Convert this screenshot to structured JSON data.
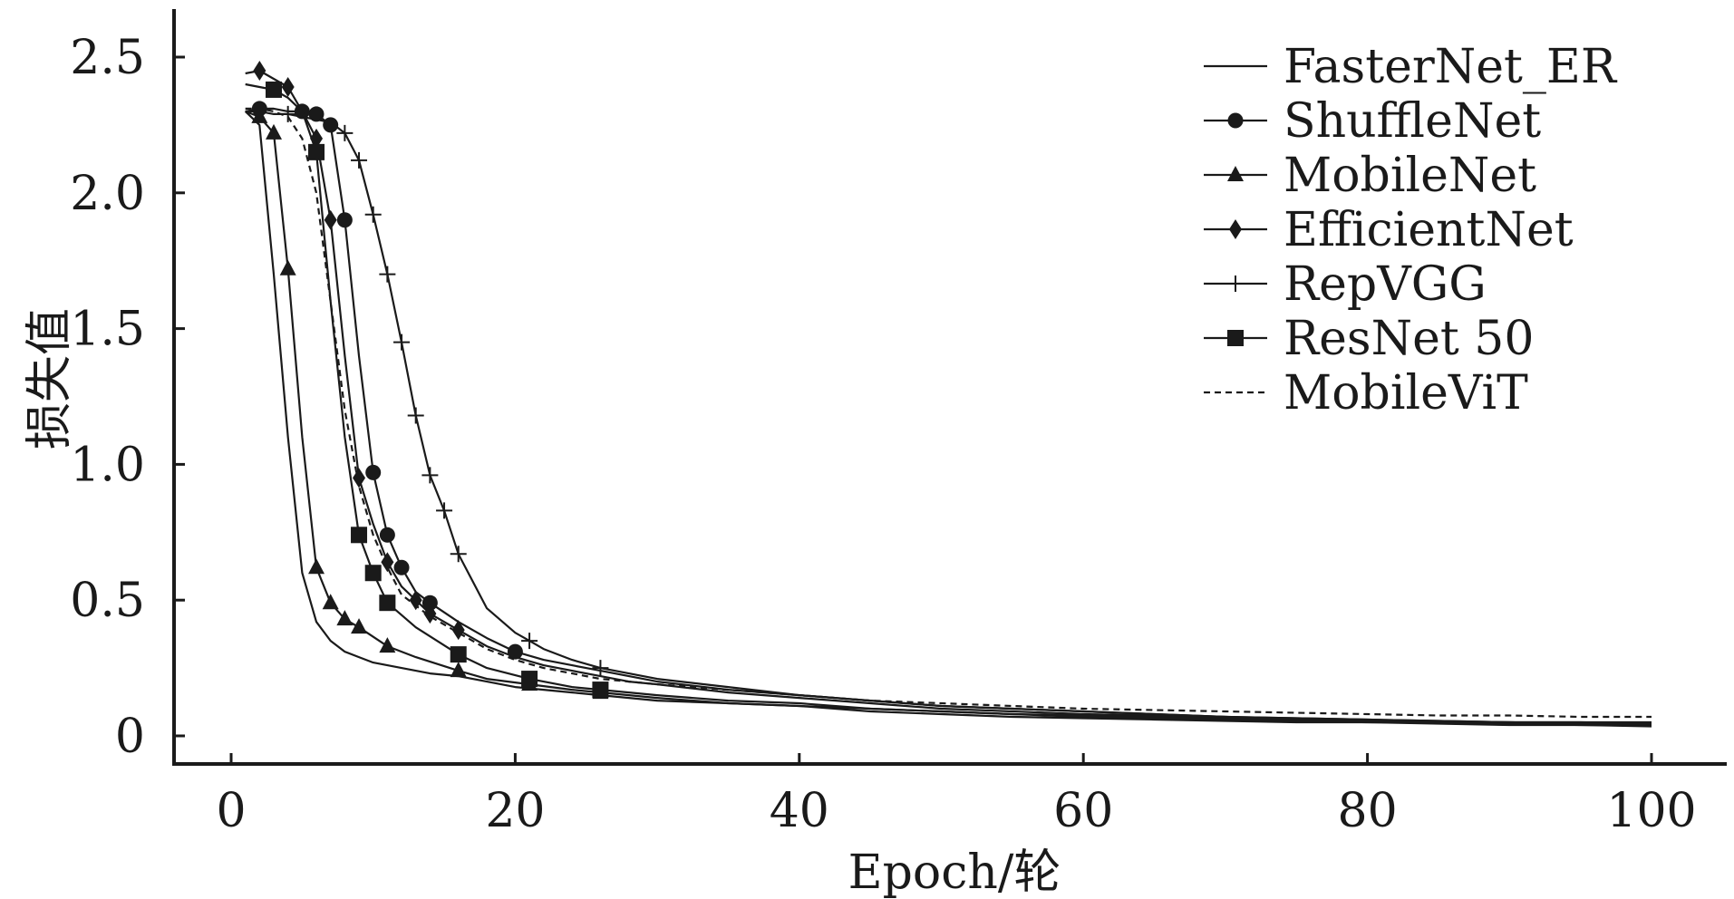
{
  "chart_data": {
    "type": "line",
    "title": "",
    "xlabel": "Epoch/轮",
    "ylabel": "损失值",
    "xlim": [
      -5,
      105
    ],
    "ylim": [
      -0.1,
      2.6
    ],
    "xticks": [
      0,
      20,
      40,
      60,
      80,
      100
    ],
    "xtick_labels": [
      "0",
      "20",
      "40",
      "60",
      "80",
      "100"
    ],
    "yticks": [
      0,
      0.5,
      1.0,
      1.5,
      2.0,
      2.5
    ],
    "ytick_labels": [
      "0",
      "0.5",
      "1.0",
      "1.5",
      "2.0",
      "2.5"
    ],
    "grid": false,
    "legend_position": "top-right",
    "colors": {
      "line": "#1a1a1a",
      "axis": "#1a1a1a",
      "background": "#ffffff"
    },
    "series": [
      {
        "name": "FasterNet_ER",
        "marker": "none",
        "dash": "solid",
        "x": [
          1,
          2,
          3,
          4,
          5,
          6,
          7,
          8,
          9,
          10,
          12,
          14,
          16,
          18,
          20,
          22,
          24,
          26,
          28,
          30,
          35,
          40,
          45,
          50,
          55,
          60,
          65,
          70,
          75,
          80,
          85,
          90,
          95,
          100
        ],
        "y": [
          2.3,
          2.25,
          1.7,
          1.1,
          0.6,
          0.42,
          0.35,
          0.31,
          0.29,
          0.27,
          0.25,
          0.23,
          0.22,
          0.2,
          0.18,
          0.17,
          0.16,
          0.15,
          0.14,
          0.13,
          0.12,
          0.11,
          0.09,
          0.08,
          0.07,
          0.065,
          0.06,
          0.055,
          0.05,
          0.05,
          0.045,
          0.04,
          0.04,
          0.035
        ],
        "marker_x": []
      },
      {
        "name": "ShuffleNet",
        "marker": "circle",
        "dash": "solid",
        "x": [
          1,
          2,
          3,
          4,
          5,
          6,
          7,
          8,
          9,
          10,
          11,
          12,
          13,
          14,
          16,
          18,
          20,
          22,
          24,
          26,
          28,
          30,
          35,
          40,
          45,
          50,
          55,
          60,
          65,
          70,
          75,
          80,
          85,
          90,
          95,
          100
        ],
        "y": [
          2.3,
          2.31,
          2.31,
          2.3,
          2.3,
          2.29,
          2.25,
          1.9,
          1.4,
          0.97,
          0.74,
          0.62,
          0.53,
          0.49,
          0.42,
          0.36,
          0.31,
          0.28,
          0.26,
          0.24,
          0.22,
          0.2,
          0.17,
          0.15,
          0.13,
          0.11,
          0.1,
          0.09,
          0.08,
          0.07,
          0.06,
          0.055,
          0.05,
          0.05,
          0.045,
          0.045
        ],
        "marker_x": [
          2,
          5,
          6,
          7,
          8,
          10,
          11,
          12,
          14,
          20
        ]
      },
      {
        "name": "MobileNet",
        "marker": "triangle",
        "dash": "solid",
        "x": [
          1,
          2,
          3,
          4,
          5,
          6,
          7,
          8,
          9,
          11,
          13,
          16,
          18,
          21,
          24,
          26,
          28,
          30,
          35,
          40,
          45,
          50,
          55,
          60,
          65,
          70,
          75,
          80,
          85,
          90,
          95,
          100
        ],
        "y": [
          2.3,
          2.28,
          2.22,
          1.72,
          1.1,
          0.62,
          0.49,
          0.43,
          0.4,
          0.33,
          0.29,
          0.24,
          0.21,
          0.19,
          0.17,
          0.16,
          0.15,
          0.14,
          0.12,
          0.11,
          0.1,
          0.09,
          0.08,
          0.07,
          0.065,
          0.06,
          0.055,
          0.05,
          0.05,
          0.045,
          0.04,
          0.04
        ],
        "marker_x": [
          2,
          3,
          4,
          6,
          7,
          8,
          9,
          11,
          16,
          21,
          26
        ]
      },
      {
        "name": "EfficientNet",
        "marker": "diamond",
        "dash": "solid",
        "x": [
          1,
          2,
          3,
          4,
          5,
          6,
          7,
          8,
          9,
          10,
          11,
          12,
          13,
          14,
          16,
          18,
          20,
          22,
          24,
          26,
          28,
          30,
          35,
          40,
          45,
          50,
          55,
          60,
          65,
          70,
          75,
          80,
          85,
          90,
          95,
          100
        ],
        "y": [
          2.44,
          2.45,
          2.42,
          2.39,
          2.3,
          2.2,
          1.9,
          1.4,
          0.95,
          0.78,
          0.64,
          0.55,
          0.5,
          0.45,
          0.39,
          0.33,
          0.29,
          0.26,
          0.24,
          0.22,
          0.2,
          0.19,
          0.16,
          0.14,
          0.12,
          0.1,
          0.09,
          0.08,
          0.075,
          0.07,
          0.065,
          0.06,
          0.055,
          0.05,
          0.05,
          0.045
        ],
        "marker_x": [
          2,
          4,
          6,
          7,
          9,
          11,
          13,
          14,
          16
        ]
      },
      {
        "name": "RepVGG",
        "marker": "plus",
        "dash": "solid",
        "x": [
          1,
          2,
          3,
          4,
          5,
          6,
          7,
          8,
          9,
          10,
          11,
          12,
          13,
          14,
          15,
          16,
          18,
          20,
          21,
          22,
          24,
          26,
          28,
          30,
          35,
          40,
          45,
          50,
          55,
          60,
          65,
          70,
          75,
          80,
          85,
          90,
          95,
          100
        ],
        "y": [
          2.3,
          2.3,
          2.29,
          2.29,
          2.28,
          2.27,
          2.26,
          2.22,
          2.12,
          1.92,
          1.7,
          1.45,
          1.18,
          0.96,
          0.83,
          0.67,
          0.47,
          0.38,
          0.35,
          0.32,
          0.28,
          0.25,
          0.23,
          0.21,
          0.18,
          0.15,
          0.13,
          0.11,
          0.1,
          0.09,
          0.08,
          0.07,
          0.065,
          0.06,
          0.055,
          0.05,
          0.05,
          0.05
        ],
        "marker_x": [
          4,
          8,
          9,
          10,
          11,
          12,
          13,
          14,
          15,
          16,
          21,
          26
        ]
      },
      {
        "name": "ResNet 50",
        "marker": "square",
        "dash": "solid",
        "x": [
          1,
          2,
          3,
          4,
          5,
          6,
          7,
          8,
          9,
          10,
          11,
          13,
          16,
          18,
          21,
          24,
          26,
          28,
          30,
          35,
          40,
          45,
          50,
          55,
          60,
          65,
          70,
          75,
          80,
          85,
          90,
          95,
          100
        ],
        "y": [
          2.4,
          2.39,
          2.38,
          2.35,
          2.3,
          2.15,
          1.6,
          1.1,
          0.74,
          0.6,
          0.49,
          0.4,
          0.3,
          0.25,
          0.21,
          0.18,
          0.17,
          0.16,
          0.15,
          0.13,
          0.12,
          0.1,
          0.09,
          0.08,
          0.075,
          0.07,
          0.065,
          0.06,
          0.055,
          0.05,
          0.05,
          0.045,
          0.045
        ],
        "marker_x": [
          3,
          6,
          9,
          10,
          11,
          16,
          21,
          26
        ]
      },
      {
        "name": "MobileViT",
        "marker": "none",
        "dash": "dashed",
        "x": [
          1,
          2,
          3,
          4,
          5,
          6,
          7,
          8,
          9,
          10,
          11,
          12,
          14,
          16,
          18,
          20,
          22,
          24,
          26,
          28,
          30,
          35,
          40,
          45,
          50,
          55,
          60,
          65,
          70,
          75,
          80,
          85,
          90,
          95,
          100
        ],
        "y": [
          2.31,
          2.31,
          2.3,
          2.28,
          2.2,
          2.0,
          1.6,
          1.2,
          0.92,
          0.74,
          0.62,
          0.52,
          0.44,
          0.38,
          0.32,
          0.28,
          0.25,
          0.23,
          0.21,
          0.2,
          0.19,
          0.17,
          0.15,
          0.13,
          0.12,
          0.11,
          0.1,
          0.095,
          0.09,
          0.085,
          0.08,
          0.075,
          0.075,
          0.07,
          0.07
        ],
        "marker_x": []
      }
    ]
  }
}
